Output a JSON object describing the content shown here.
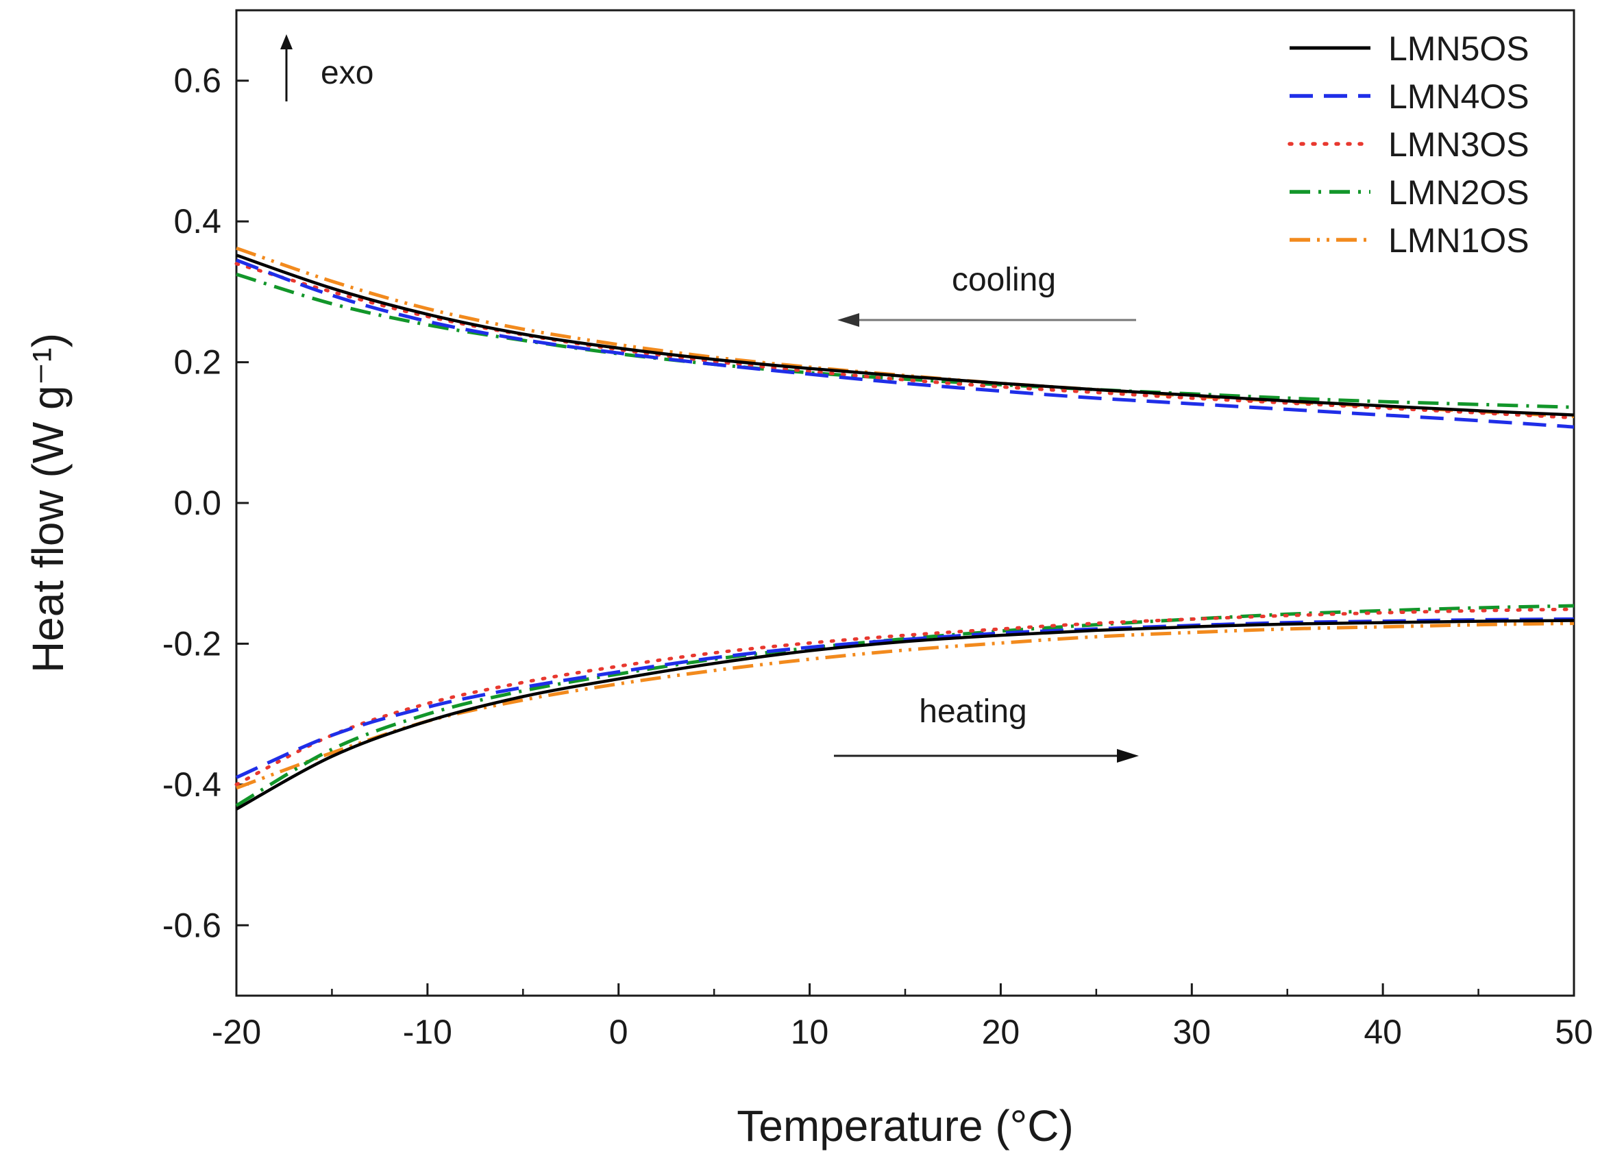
{
  "chart_data": {
    "type": "line",
    "title": "",
    "xlabel": "Temperature (°C)",
    "ylabel": "Heat flow (W g⁻¹)",
    "xlim": [
      -20,
      50
    ],
    "ylim": [
      -0.7,
      0.7
    ],
    "x_ticks": [
      -20,
      -10,
      0,
      10,
      20,
      30,
      40,
      50
    ],
    "x_tick_labels": [
      "-20",
      "-10",
      "0",
      "10",
      "20",
      "30",
      "40",
      "50"
    ],
    "y_ticks": [
      -0.6,
      -0.4,
      -0.2,
      0.0,
      0.2,
      0.4,
      0.6
    ],
    "y_tick_labels": [
      "-0.6",
      "-0.4",
      "-0.2",
      "0.0",
      "0.2",
      "0.4",
      "0.6"
    ],
    "grid": false,
    "legend_position": "top-right",
    "annotations": {
      "exo": "exo",
      "cooling": "cooling",
      "heating": "heating"
    },
    "x": [
      -20,
      -15,
      -10,
      -5,
      0,
      5,
      10,
      15,
      20,
      25,
      30,
      35,
      40,
      45,
      50
    ],
    "series": [
      {
        "name": "LMN5OS",
        "color": "#000000",
        "dash": "solid",
        "cooling": [
          0.352,
          0.305,
          0.268,
          0.24,
          0.22,
          0.204,
          0.191,
          0.18,
          0.17,
          0.161,
          0.153,
          0.145,
          0.138,
          0.131,
          0.125
        ],
        "heating": [
          -0.435,
          -0.36,
          -0.31,
          -0.275,
          -0.25,
          -0.228,
          -0.21,
          -0.197,
          -0.188,
          -0.181,
          -0.176,
          -0.172,
          -0.17,
          -0.168,
          -0.167
        ]
      },
      {
        "name": "LMN4OS",
        "color": "#1f2ee8",
        "dash": "longdash",
        "cooling": [
          0.345,
          0.295,
          0.258,
          0.232,
          0.213,
          0.197,
          0.183,
          0.17,
          0.159,
          0.149,
          0.141,
          0.133,
          0.125,
          0.117,
          0.108
        ],
        "heating": [
          -0.39,
          -0.33,
          -0.29,
          -0.262,
          -0.24,
          -0.22,
          -0.205,
          -0.194,
          -0.185,
          -0.179,
          -0.174,
          -0.17,
          -0.168,
          -0.166,
          -0.165
        ]
      },
      {
        "name": "LMN3OS",
        "color": "#e8382f",
        "dash": "dot",
        "cooling": [
          0.34,
          0.3,
          0.265,
          0.239,
          0.218,
          0.201,
          0.187,
          0.175,
          0.165,
          0.157,
          0.149,
          0.142,
          0.135,
          0.128,
          0.121
        ],
        "heating": [
          -0.4,
          -0.33,
          -0.285,
          -0.255,
          -0.232,
          -0.213,
          -0.199,
          -0.188,
          -0.179,
          -0.171,
          -0.165,
          -0.16,
          -0.156,
          -0.153,
          -0.151
        ]
      },
      {
        "name": "LMN2OS",
        "color": "#12962a",
        "dash": "dashdot",
        "cooling": [
          0.325,
          0.283,
          0.253,
          0.231,
          0.212,
          0.197,
          0.185,
          0.176,
          0.168,
          0.161,
          0.155,
          0.149,
          0.144,
          0.14,
          0.136
        ],
        "heating": [
          -0.43,
          -0.35,
          -0.3,
          -0.267,
          -0.243,
          -0.222,
          -0.206,
          -0.193,
          -0.182,
          -0.173,
          -0.165,
          -0.158,
          -0.153,
          -0.149,
          -0.146
        ]
      },
      {
        "name": "LMN1OS",
        "color": "#f28a1d",
        "dash": "dashdotdot",
        "cooling": [
          0.362,
          0.315,
          0.276,
          0.247,
          0.225,
          0.207,
          0.193,
          0.181,
          0.17,
          0.161,
          0.152,
          0.144,
          0.137,
          0.13,
          0.123
        ],
        "heating": [
          -0.405,
          -0.355,
          -0.31,
          -0.28,
          -0.257,
          -0.238,
          -0.222,
          -0.209,
          -0.199,
          -0.19,
          -0.184,
          -0.179,
          -0.176,
          -0.173,
          -0.171
        ]
      }
    ]
  }
}
